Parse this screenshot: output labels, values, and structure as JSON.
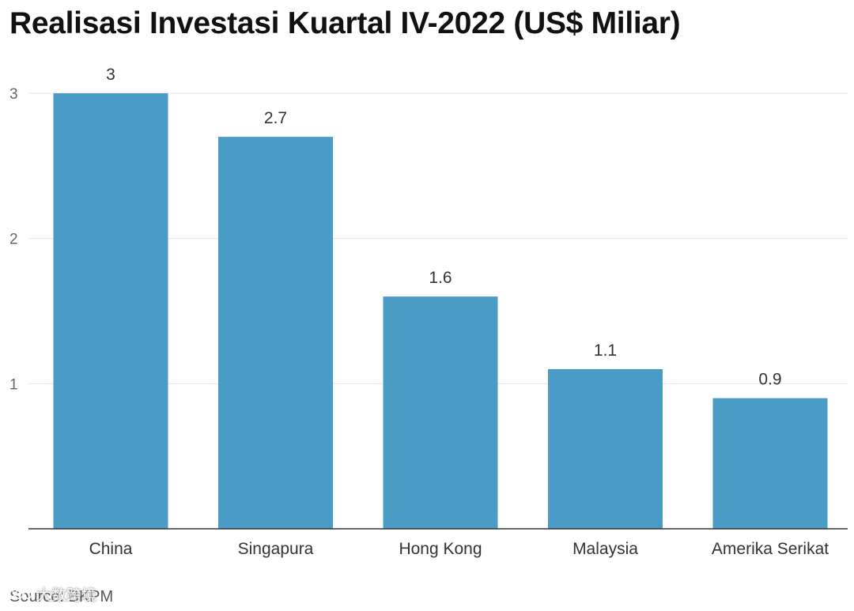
{
  "chart_data": {
    "type": "bar",
    "title": "Realisasi Investasi Kuartal IV-2022 (US$ Miliar)",
    "categories": [
      "China",
      "Singapura",
      "Hong Kong",
      "Malaysia",
      "Amerika Serikat"
    ],
    "values": [
      3,
      2.7,
      1.6,
      1.1,
      0.9
    ],
    "data_labels": [
      "3",
      "2.7",
      "1.6",
      "1.1",
      "0.9"
    ],
    "yticks": [
      1,
      2,
      3
    ],
    "ytick_labels": [
      "1",
      "2",
      "3"
    ],
    "ylim": [
      0,
      3
    ],
    "xlabel": "",
    "ylabel": "",
    "grid": true,
    "legend": "none",
    "bar_color": "#4a9cc7",
    "source": "Source: BKPM"
  },
  "watermark": {
    "text": "大数跨境"
  }
}
